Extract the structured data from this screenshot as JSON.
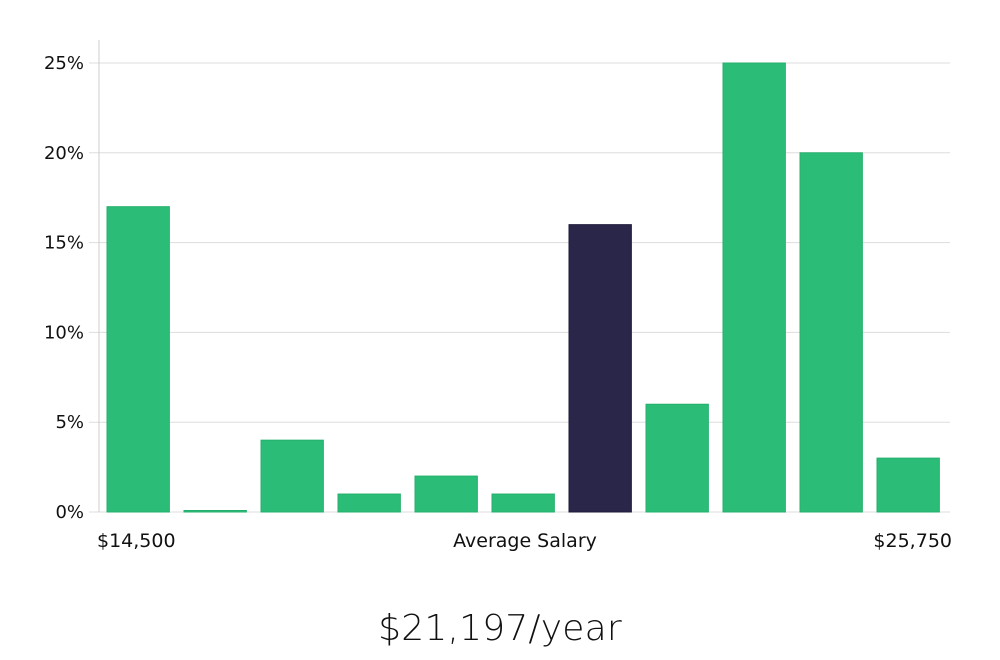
{
  "colors": {
    "bar": "#2bbd77",
    "highlight_bar": "#29264a",
    "grid": "#dddddd",
    "axis": "#cccccc",
    "text": "#111111"
  },
  "chart_data": {
    "type": "bar",
    "title": "",
    "xlabel": "Average Salary",
    "ylabel": "",
    "x_range_labels": {
      "min": "$14,500",
      "max": "$25,750"
    },
    "bins": 11,
    "values": [
      17,
      0,
      4,
      1,
      2,
      1,
      16,
      6,
      25,
      20,
      3
    ],
    "highlight_index": 6,
    "ylim": [
      0,
      25
    ],
    "y_ticks": [
      0,
      5,
      10,
      15,
      20,
      25
    ],
    "y_tick_labels": [
      "0%",
      "5%",
      "10%",
      "15%",
      "20%",
      "25%"
    ],
    "grid": true
  },
  "summary": {
    "average_label": "$21,197/year"
  }
}
